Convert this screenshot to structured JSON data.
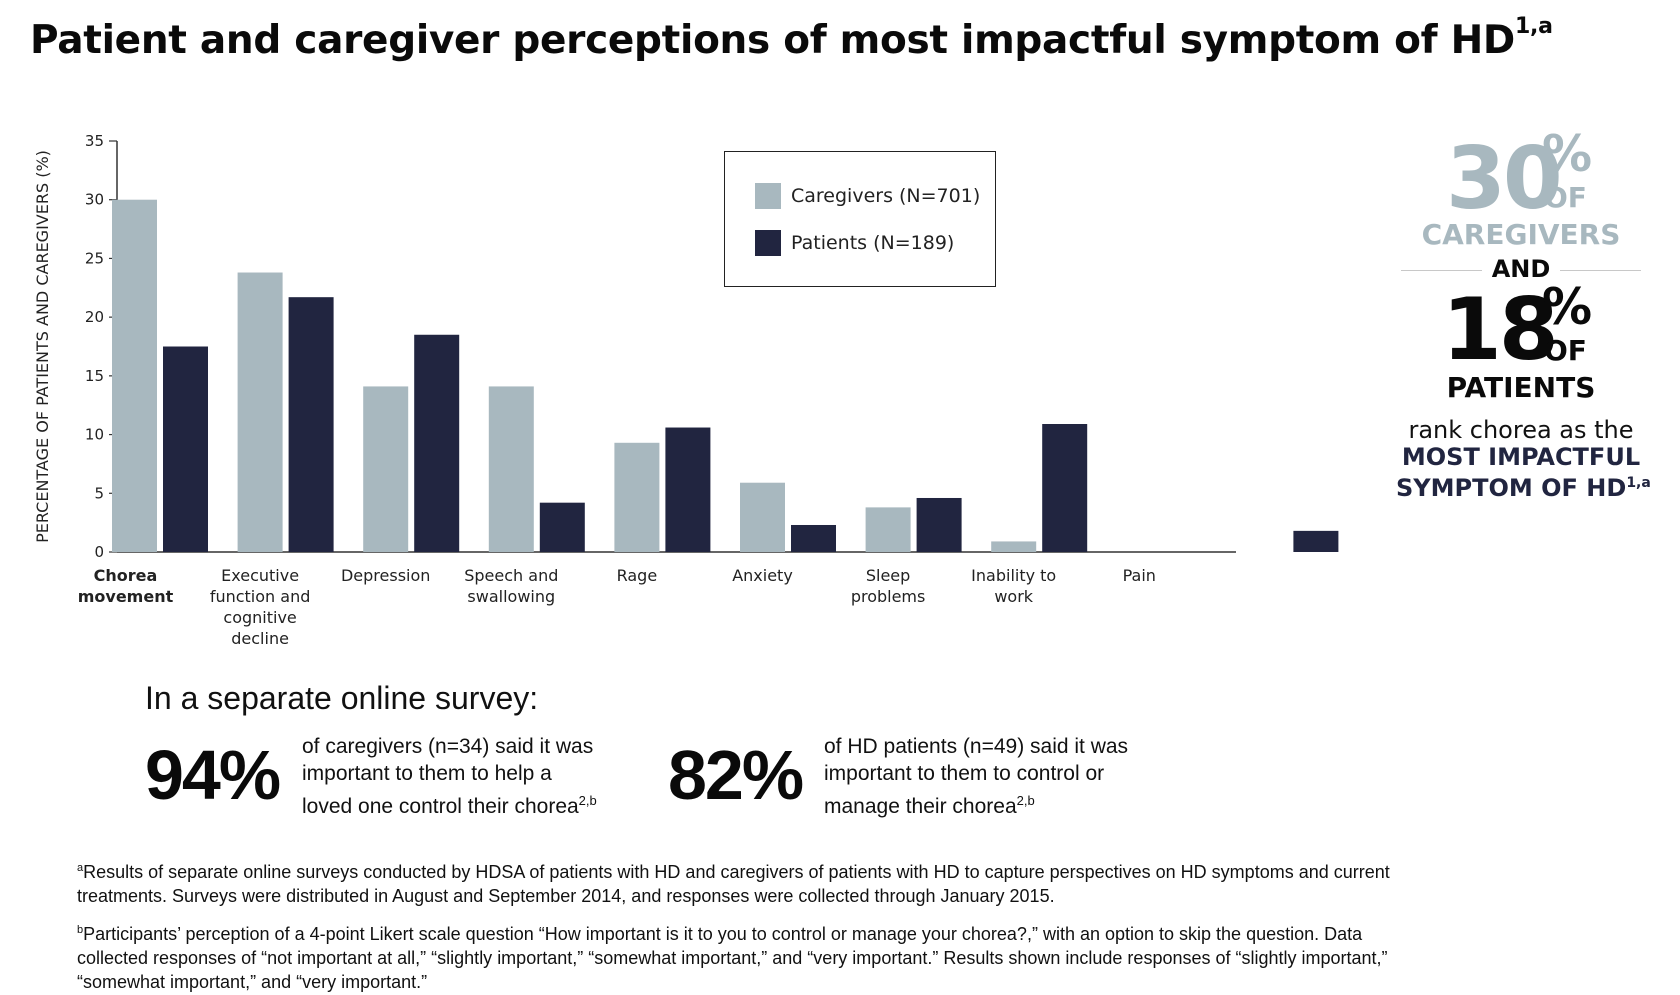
{
  "title": "Patient and caregiver perceptions of most impactful symptom of HD",
  "title_sup": "1,a",
  "chart_data": {
    "type": "bar",
    "ylabel": "PERCENTAGE OF PATIENTS AND CAREGIVERS (%)",
    "ylim": [
      0,
      35
    ],
    "yticks": [
      0,
      5,
      10,
      15,
      20,
      25,
      30,
      35
    ],
    "categories": [
      {
        "lines": [
          "Chorea",
          "movement"
        ],
        "bold": true
      },
      {
        "lines": [
          "Executive",
          "function and",
          "cognitive",
          "decline"
        ],
        "bold": false
      },
      {
        "lines": [
          "Depression"
        ],
        "bold": false
      },
      {
        "lines": [
          "Speech and",
          "swallowing"
        ],
        "bold": false
      },
      {
        "lines": [
          "Rage"
        ],
        "bold": false
      },
      {
        "lines": [
          "Anxiety"
        ],
        "bold": false
      },
      {
        "lines": [
          "Sleep",
          "problems"
        ],
        "bold": false
      },
      {
        "lines": [
          "Inability to",
          "work"
        ],
        "bold": false
      },
      {
        "lines": [
          "Pain"
        ],
        "bold": false
      },
      {
        "lines": [],
        "bold": false
      }
    ],
    "series": [
      {
        "name": "Caregivers (N=701)",
        "color": "#a8b8bf",
        "values": [
          30,
          23.8,
          14.1,
          14.1,
          9.3,
          5.9,
          3.8,
          0.9,
          0,
          0
        ]
      },
      {
        "name": "Patients (N=189)",
        "color": "#212540",
        "values": [
          17.5,
          21.7,
          18.5,
          4.2,
          10.6,
          2.3,
          4.6,
          10.9,
          0,
          1.8
        ]
      }
    ],
    "legend_position": "top-right",
    "grid": false
  },
  "callout": {
    "caregiver_value": "30",
    "pct": "%",
    "of": "OF",
    "caregivers": "CAREGIVERS",
    "and": "AND",
    "patient_value": "18",
    "patients": "PATIENTS",
    "rank_line": "rank chorea as the",
    "most_line": "MOST IMPACTFUL",
    "symptom_line": "SYMPTOM OF HD",
    "symptom_sup": "1,a",
    "gray": "#a8b8bf",
    "dark": "#212540"
  },
  "survey": {
    "heading": "In a separate online survey:",
    "stat1": {
      "value": "94%",
      "lines": [
        "of caregivers (n=34) said it was",
        "important to them to help a",
        "loved one control their chorea"
      ],
      "sup": "2,b"
    },
    "stat2": {
      "value": "82%",
      "lines": [
        "of HD patients (n=49) said it was",
        "important to them to control or",
        "manage their chorea"
      ],
      "sup": "2,b"
    }
  },
  "footnotes": {
    "a_mark": "a",
    "a_text": "Results of separate online surveys conducted by HDSA of patients with HD and caregivers of patients with HD to capture perspectives on HD symptoms and current treatments. Surveys were distributed in August and September 2014, and responses were collected through January 2015.",
    "b_mark": "b",
    "b_text": "Participants’ perception of a 4-point Likert scale question “How important is it to you to control or manage your chorea?,” with an option to skip the question. Data collected responses of “not important at all,” “slightly important,” “somewhat important,” and “very important.” Results shown include responses of “slightly important,” “somewhat important,” and “very important.”"
  }
}
